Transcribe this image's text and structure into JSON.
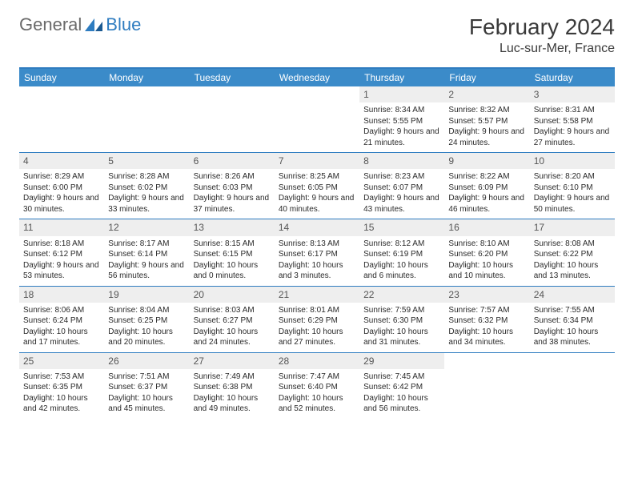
{
  "logo": {
    "text_a": "General",
    "text_b": "Blue"
  },
  "title": "February 2024",
  "location": "Luc-sur-Mer, France",
  "colors": {
    "header_bg": "#3b8bc9",
    "header_border": "#2e7cc0",
    "daynum_bg": "#eeeeee",
    "text": "#2a2a2a",
    "title_text": "#3a3a3a",
    "logo_gray": "#6a6a6a",
    "logo_blue": "#2e7cc0"
  },
  "day_names": [
    "Sunday",
    "Monday",
    "Tuesday",
    "Wednesday",
    "Thursday",
    "Friday",
    "Saturday"
  ],
  "weeks": [
    [
      {
        "n": "",
        "sr": "",
        "ss": "",
        "dl": ""
      },
      {
        "n": "",
        "sr": "",
        "ss": "",
        "dl": ""
      },
      {
        "n": "",
        "sr": "",
        "ss": "",
        "dl": ""
      },
      {
        "n": "",
        "sr": "",
        "ss": "",
        "dl": ""
      },
      {
        "n": "1",
        "sr": "Sunrise: 8:34 AM",
        "ss": "Sunset: 5:55 PM",
        "dl": "Daylight: 9 hours and 21 minutes."
      },
      {
        "n": "2",
        "sr": "Sunrise: 8:32 AM",
        "ss": "Sunset: 5:57 PM",
        "dl": "Daylight: 9 hours and 24 minutes."
      },
      {
        "n": "3",
        "sr": "Sunrise: 8:31 AM",
        "ss": "Sunset: 5:58 PM",
        "dl": "Daylight: 9 hours and 27 minutes."
      }
    ],
    [
      {
        "n": "4",
        "sr": "Sunrise: 8:29 AM",
        "ss": "Sunset: 6:00 PM",
        "dl": "Daylight: 9 hours and 30 minutes."
      },
      {
        "n": "5",
        "sr": "Sunrise: 8:28 AM",
        "ss": "Sunset: 6:02 PM",
        "dl": "Daylight: 9 hours and 33 minutes."
      },
      {
        "n": "6",
        "sr": "Sunrise: 8:26 AM",
        "ss": "Sunset: 6:03 PM",
        "dl": "Daylight: 9 hours and 37 minutes."
      },
      {
        "n": "7",
        "sr": "Sunrise: 8:25 AM",
        "ss": "Sunset: 6:05 PM",
        "dl": "Daylight: 9 hours and 40 minutes."
      },
      {
        "n": "8",
        "sr": "Sunrise: 8:23 AM",
        "ss": "Sunset: 6:07 PM",
        "dl": "Daylight: 9 hours and 43 minutes."
      },
      {
        "n": "9",
        "sr": "Sunrise: 8:22 AM",
        "ss": "Sunset: 6:09 PM",
        "dl": "Daylight: 9 hours and 46 minutes."
      },
      {
        "n": "10",
        "sr": "Sunrise: 8:20 AM",
        "ss": "Sunset: 6:10 PM",
        "dl": "Daylight: 9 hours and 50 minutes."
      }
    ],
    [
      {
        "n": "11",
        "sr": "Sunrise: 8:18 AM",
        "ss": "Sunset: 6:12 PM",
        "dl": "Daylight: 9 hours and 53 minutes."
      },
      {
        "n": "12",
        "sr": "Sunrise: 8:17 AM",
        "ss": "Sunset: 6:14 PM",
        "dl": "Daylight: 9 hours and 56 minutes."
      },
      {
        "n": "13",
        "sr": "Sunrise: 8:15 AM",
        "ss": "Sunset: 6:15 PM",
        "dl": "Daylight: 10 hours and 0 minutes."
      },
      {
        "n": "14",
        "sr": "Sunrise: 8:13 AM",
        "ss": "Sunset: 6:17 PM",
        "dl": "Daylight: 10 hours and 3 minutes."
      },
      {
        "n": "15",
        "sr": "Sunrise: 8:12 AM",
        "ss": "Sunset: 6:19 PM",
        "dl": "Daylight: 10 hours and 6 minutes."
      },
      {
        "n": "16",
        "sr": "Sunrise: 8:10 AM",
        "ss": "Sunset: 6:20 PM",
        "dl": "Daylight: 10 hours and 10 minutes."
      },
      {
        "n": "17",
        "sr": "Sunrise: 8:08 AM",
        "ss": "Sunset: 6:22 PM",
        "dl": "Daylight: 10 hours and 13 minutes."
      }
    ],
    [
      {
        "n": "18",
        "sr": "Sunrise: 8:06 AM",
        "ss": "Sunset: 6:24 PM",
        "dl": "Daylight: 10 hours and 17 minutes."
      },
      {
        "n": "19",
        "sr": "Sunrise: 8:04 AM",
        "ss": "Sunset: 6:25 PM",
        "dl": "Daylight: 10 hours and 20 minutes."
      },
      {
        "n": "20",
        "sr": "Sunrise: 8:03 AM",
        "ss": "Sunset: 6:27 PM",
        "dl": "Daylight: 10 hours and 24 minutes."
      },
      {
        "n": "21",
        "sr": "Sunrise: 8:01 AM",
        "ss": "Sunset: 6:29 PM",
        "dl": "Daylight: 10 hours and 27 minutes."
      },
      {
        "n": "22",
        "sr": "Sunrise: 7:59 AM",
        "ss": "Sunset: 6:30 PM",
        "dl": "Daylight: 10 hours and 31 minutes."
      },
      {
        "n": "23",
        "sr": "Sunrise: 7:57 AM",
        "ss": "Sunset: 6:32 PM",
        "dl": "Daylight: 10 hours and 34 minutes."
      },
      {
        "n": "24",
        "sr": "Sunrise: 7:55 AM",
        "ss": "Sunset: 6:34 PM",
        "dl": "Daylight: 10 hours and 38 minutes."
      }
    ],
    [
      {
        "n": "25",
        "sr": "Sunrise: 7:53 AM",
        "ss": "Sunset: 6:35 PM",
        "dl": "Daylight: 10 hours and 42 minutes."
      },
      {
        "n": "26",
        "sr": "Sunrise: 7:51 AM",
        "ss": "Sunset: 6:37 PM",
        "dl": "Daylight: 10 hours and 45 minutes."
      },
      {
        "n": "27",
        "sr": "Sunrise: 7:49 AM",
        "ss": "Sunset: 6:38 PM",
        "dl": "Daylight: 10 hours and 49 minutes."
      },
      {
        "n": "28",
        "sr": "Sunrise: 7:47 AM",
        "ss": "Sunset: 6:40 PM",
        "dl": "Daylight: 10 hours and 52 minutes."
      },
      {
        "n": "29",
        "sr": "Sunrise: 7:45 AM",
        "ss": "Sunset: 6:42 PM",
        "dl": "Daylight: 10 hours and 56 minutes."
      },
      {
        "n": "",
        "sr": "",
        "ss": "",
        "dl": ""
      },
      {
        "n": "",
        "sr": "",
        "ss": "",
        "dl": ""
      }
    ]
  ]
}
